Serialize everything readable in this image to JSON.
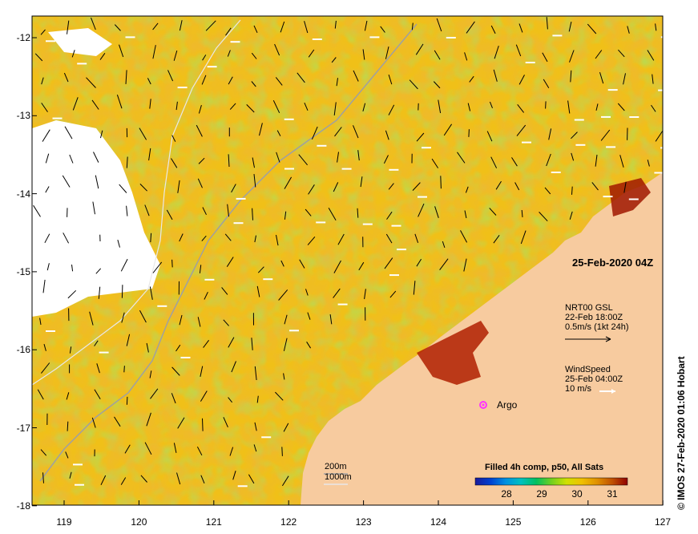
{
  "title": "25-Feb-2020 04Z",
  "credit": "© IMOS 27-Feb-2020 01:06 Hobart",
  "y_axis_ticks": [
    "-12",
    "-13",
    "-14",
    "-15",
    "-16",
    "-17",
    "-18"
  ],
  "x_axis_ticks": [
    "119",
    "120",
    "121",
    "122",
    "123",
    "124",
    "125",
    "126",
    "127"
  ],
  "current_legend": {
    "line1": "NRT00 GSL",
    "line2": "22-Feb 18:00Z",
    "line3": "0.5m/s (1kt 24h)"
  },
  "wind_legend": {
    "line1": "WindSpeed",
    "line2": "25-Feb 04:00Z",
    "line3": "10 m/s"
  },
  "argo_label": "Argo",
  "isobath_legend": {
    "shallow": "200m",
    "deep": "1000m"
  },
  "colorbar": {
    "title": "Filled 4h comp, p50, All Sats",
    "ticks": [
      "28",
      "29",
      "30",
      "31"
    ],
    "colors": [
      "#1a1a9a",
      "#0040d0",
      "#0090e0",
      "#00c0c0",
      "#00c060",
      "#70d020",
      "#d0e000",
      "#f0c000",
      "#e09000",
      "#c05000",
      "#900000"
    ]
  },
  "colors": {
    "land": "#f7cb9f",
    "argo": "#ff33ff",
    "isobath_200": "#a0a0a0",
    "isobath_1000": "#e8e8e8"
  }
}
